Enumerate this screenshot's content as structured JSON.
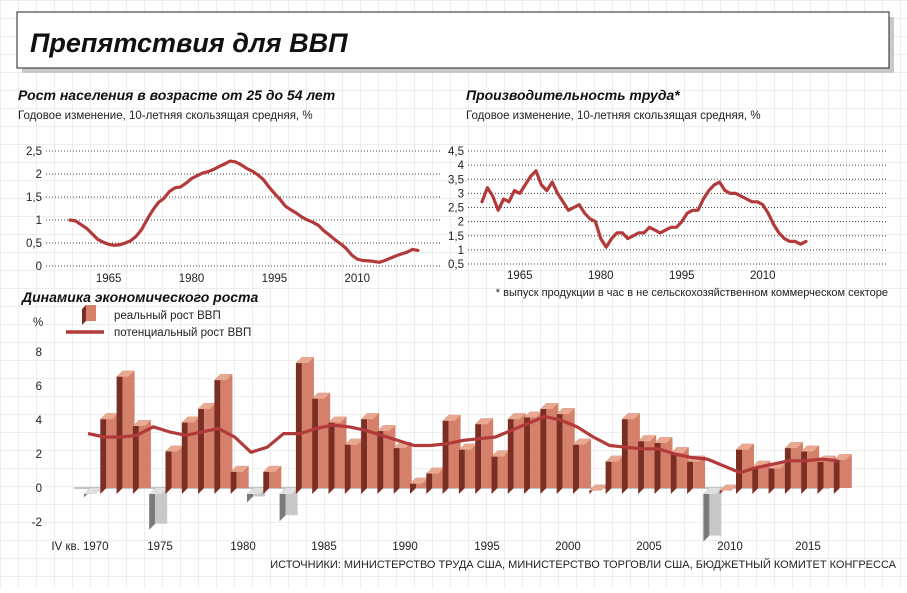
{
  "title": "Препятствия для ВВП",
  "source": "ИСТОЧНИКИ: МИНИСТЕРСТВО ТРУДА США, МИНИСТЕРСТВО ТОРГОВЛИ США, БЮДЖЕТНЫЙ КОМИТЕТ КОНГРЕССА",
  "colors": {
    "line": "#b33a3a",
    "bar_front": "#d4806a",
    "bar_side": "#7a2f22",
    "bar_top": "#e8a892",
    "neg_front": "#c8c8c8",
    "neg_side": "#7a7a7a",
    "grid": "#dcdcdc"
  },
  "chart_data": [
    {
      "type": "line",
      "title": "Рост населения в возрасте от 25 до 54 лет",
      "subtitle": "Годовое изменение, 10-летняя скользящая средняя, %",
      "x_ticks": [
        "1965",
        "1980",
        "1995",
        "2010"
      ],
      "y_ticks": [
        "0",
        "0,5",
        "1",
        "1,5",
        "2",
        "2,5"
      ],
      "ylim": [
        0,
        2.5
      ],
      "x": [
        1958,
        1959,
        1960,
        1961,
        1962,
        1963,
        1964,
        1965,
        1966,
        1967,
        1968,
        1969,
        1970,
        1971,
        1972,
        1973,
        1974,
        1975,
        1976,
        1977,
        1978,
        1979,
        1980,
        1981,
        1982,
        1983,
        1984,
        1985,
        1986,
        1987,
        1988,
        1989,
        1990,
        1991,
        1992,
        1993,
        1994,
        1995,
        1996,
        1997,
        1998,
        1999,
        2000,
        2001,
        2002,
        2003,
        2004,
        2005,
        2006,
        2007,
        2008,
        2009,
        2010,
        2011,
        2012,
        2013,
        2014,
        2015,
        2016,
        2017,
        2018,
        2019,
        2020,
        2021
      ],
      "values": [
        1.0,
        0.98,
        0.9,
        0.82,
        0.7,
        0.58,
        0.52,
        0.47,
        0.45,
        0.46,
        0.5,
        0.55,
        0.65,
        0.8,
        1.02,
        1.22,
        1.38,
        1.47,
        1.62,
        1.7,
        1.72,
        1.8,
        1.9,
        1.96,
        2.02,
        2.05,
        2.1,
        2.16,
        2.22,
        2.28,
        2.26,
        2.2,
        2.12,
        2.06,
        1.98,
        1.88,
        1.72,
        1.58,
        1.45,
        1.3,
        1.22,
        1.15,
        1.06,
        1.0,
        0.95,
        0.88,
        0.76,
        0.67,
        0.57,
        0.48,
        0.38,
        0.24,
        0.15,
        0.12,
        0.11,
        0.1,
        0.08,
        0.12,
        0.17,
        0.22,
        0.26,
        0.3,
        0.36,
        0.34
      ]
    },
    {
      "type": "line",
      "title": "Производительность труда*",
      "subtitle": "Годовое изменение, 10-летняя скользящая средняя, %",
      "note": "* выпуск продукции в час в не сельскохозяйственном коммерческом секторе",
      "x_ticks": [
        "1965",
        "1980",
        "1995",
        "2010"
      ],
      "y_ticks": [
        "0,5",
        "1",
        "1,5",
        "2",
        "2,5",
        "3",
        "3,5",
        "4",
        "4,5"
      ],
      "ylim": [
        0.5,
        4.5
      ],
      "x": [
        1958,
        1959,
        1960,
        1961,
        1962,
        1963,
        1964,
        1965,
        1966,
        1967,
        1968,
        1969,
        1970,
        1971,
        1972,
        1973,
        1974,
        1975,
        1976,
        1977,
        1978,
        1979,
        1980,
        1981,
        1982,
        1983,
        1984,
        1985,
        1986,
        1987,
        1988,
        1989,
        1990,
        1991,
        1992,
        1993,
        1994,
        1995,
        1996,
        1997,
        1998,
        1999,
        2000,
        2001,
        2002,
        2003,
        2004,
        2005,
        2006,
        2007,
        2008,
        2009,
        2010,
        2011,
        2012,
        2013,
        2014,
        2015,
        2016,
        2017,
        2018
      ],
      "values": [
        2.7,
        3.2,
        2.9,
        2.4,
        2.8,
        2.7,
        3.1,
        3.0,
        3.3,
        3.6,
        3.8,
        3.3,
        3.1,
        3.4,
        3.0,
        2.7,
        2.4,
        2.5,
        2.6,
        2.3,
        2.1,
        2.0,
        1.4,
        1.1,
        1.4,
        1.6,
        1.6,
        1.4,
        1.5,
        1.6,
        1.6,
        1.8,
        1.7,
        1.6,
        1.7,
        1.8,
        1.8,
        2.0,
        2.3,
        2.4,
        2.4,
        2.8,
        3.1,
        3.3,
        3.4,
        3.1,
        3.0,
        3.0,
        2.9,
        2.8,
        2.7,
        2.7,
        2.6,
        2.3,
        1.9,
        1.6,
        1.4,
        1.3,
        1.3,
        1.2,
        1.3
      ]
    },
    {
      "type": "bar",
      "title": "Динамика экономического роста",
      "y_unit": "%",
      "x_ticks": [
        "IV кв. 1970",
        "1975",
        "1980",
        "1985",
        "1990",
        "1995",
        "2000",
        "2005",
        "2010",
        "2015"
      ],
      "y_ticks": [
        "-2",
        "0",
        "2",
        "4",
        "6",
        "8"
      ],
      "ylim": [
        -2,
        8
      ],
      "legend": [
        "реальный рост ВВП",
        "потенциальный рост ВВП"
      ],
      "categories": [
        "1970",
        "1971",
        "1972",
        "1973",
        "1974",
        "1975",
        "1976",
        "1977",
        "1978",
        "1979",
        "1980",
        "1981",
        "1982",
        "1983",
        "1984",
        "1985",
        "1986",
        "1987",
        "1988",
        "1989",
        "1990",
        "1991",
        "1992",
        "1993",
        "1994",
        "1995",
        "1996",
        "1997",
        "1998",
        "1999",
        "2000",
        "2001",
        "2002",
        "2003",
        "2004",
        "2005",
        "2006",
        "2007",
        "2008",
        "2009",
        "2010",
        "2011",
        "2012",
        "2013",
        "2014",
        "2015",
        "2016"
      ],
      "series": [
        {
          "name": "реальный рост ВВП",
          "values": [
            -0.2,
            4.4,
            6.9,
            4.0,
            -2.1,
            2.5,
            4.2,
            5.0,
            6.7,
            1.3,
            -0.5,
            1.3,
            -1.6,
            7.7,
            5.6,
            4.2,
            2.9,
            4.4,
            3.7,
            2.7,
            0.6,
            1.2,
            4.3,
            2.6,
            4.1,
            2.2,
            4.4,
            4.5,
            5.0,
            4.7,
            2.9,
            0.2,
            1.9,
            4.4,
            3.1,
            3.0,
            2.4,
            1.9,
            -2.8,
            0.2,
            2.6,
            1.6,
            1.5,
            2.7,
            2.5,
            1.9,
            2.0
          ]
        },
        {
          "name": "потенциальный рост ВВП",
          "values": [
            3.2,
            3.0,
            3.0,
            3.1,
            3.6,
            3.3,
            3.1,
            3.3,
            3.5,
            3.0,
            2.1,
            2.4,
            3.2,
            3.2,
            3.5,
            3.7,
            3.6,
            3.4,
            3.1,
            2.8,
            2.5,
            2.5,
            2.6,
            2.8,
            2.9,
            3.0,
            3.4,
            3.8,
            4.2,
            4.0,
            3.6,
            3.0,
            2.5,
            2.4,
            2.3,
            2.3,
            2.0,
            1.8,
            1.7,
            1.3,
            0.9,
            1.2,
            1.4,
            1.6,
            1.6,
            1.7,
            1.6
          ]
        }
      ]
    }
  ]
}
